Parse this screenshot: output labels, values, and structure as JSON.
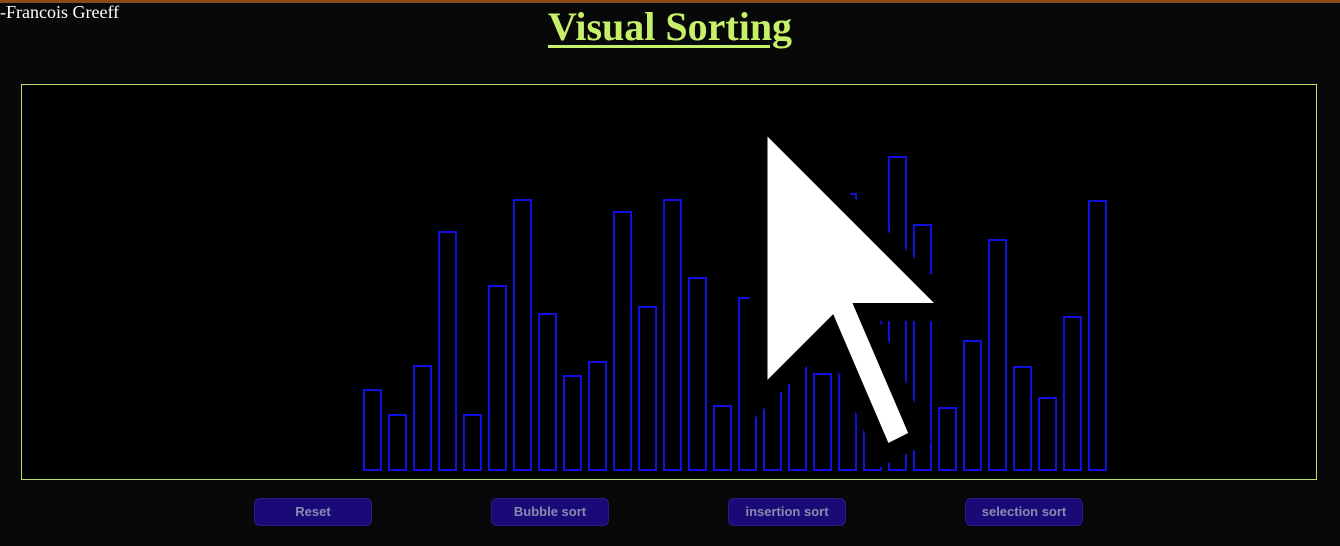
{
  "header": {
    "author": "-Francois Greeff",
    "title": "Visual Sorting"
  },
  "colors": {
    "background": "#080808",
    "title": "#c6f06a",
    "canvas_border": "#b6e06a",
    "bar_stroke": "#1010e0",
    "button_bg": "#1a0a78",
    "button_text": "#8a8ab0"
  },
  "icons": {
    "cursor": "mouse-pointer-icon"
  },
  "chart_data": {
    "type": "bar",
    "title": "",
    "xlabel": "",
    "ylabel": "",
    "ylim": [
      0,
      394
    ],
    "values": [
      80,
      55,
      104,
      238,
      55,
      184,
      270,
      156,
      94,
      108,
      258,
      163,
      270,
      192,
      64,
      172,
      269,
      169,
      96,
      276,
      229,
      313,
      245,
      62,
      129,
      230,
      103,
      72,
      153,
      269
    ]
  },
  "controls": {
    "reset_label": "Reset",
    "bubble_label": "Bubble sort",
    "insertion_label": "insertion sort",
    "selection_label": "selection sort"
  }
}
